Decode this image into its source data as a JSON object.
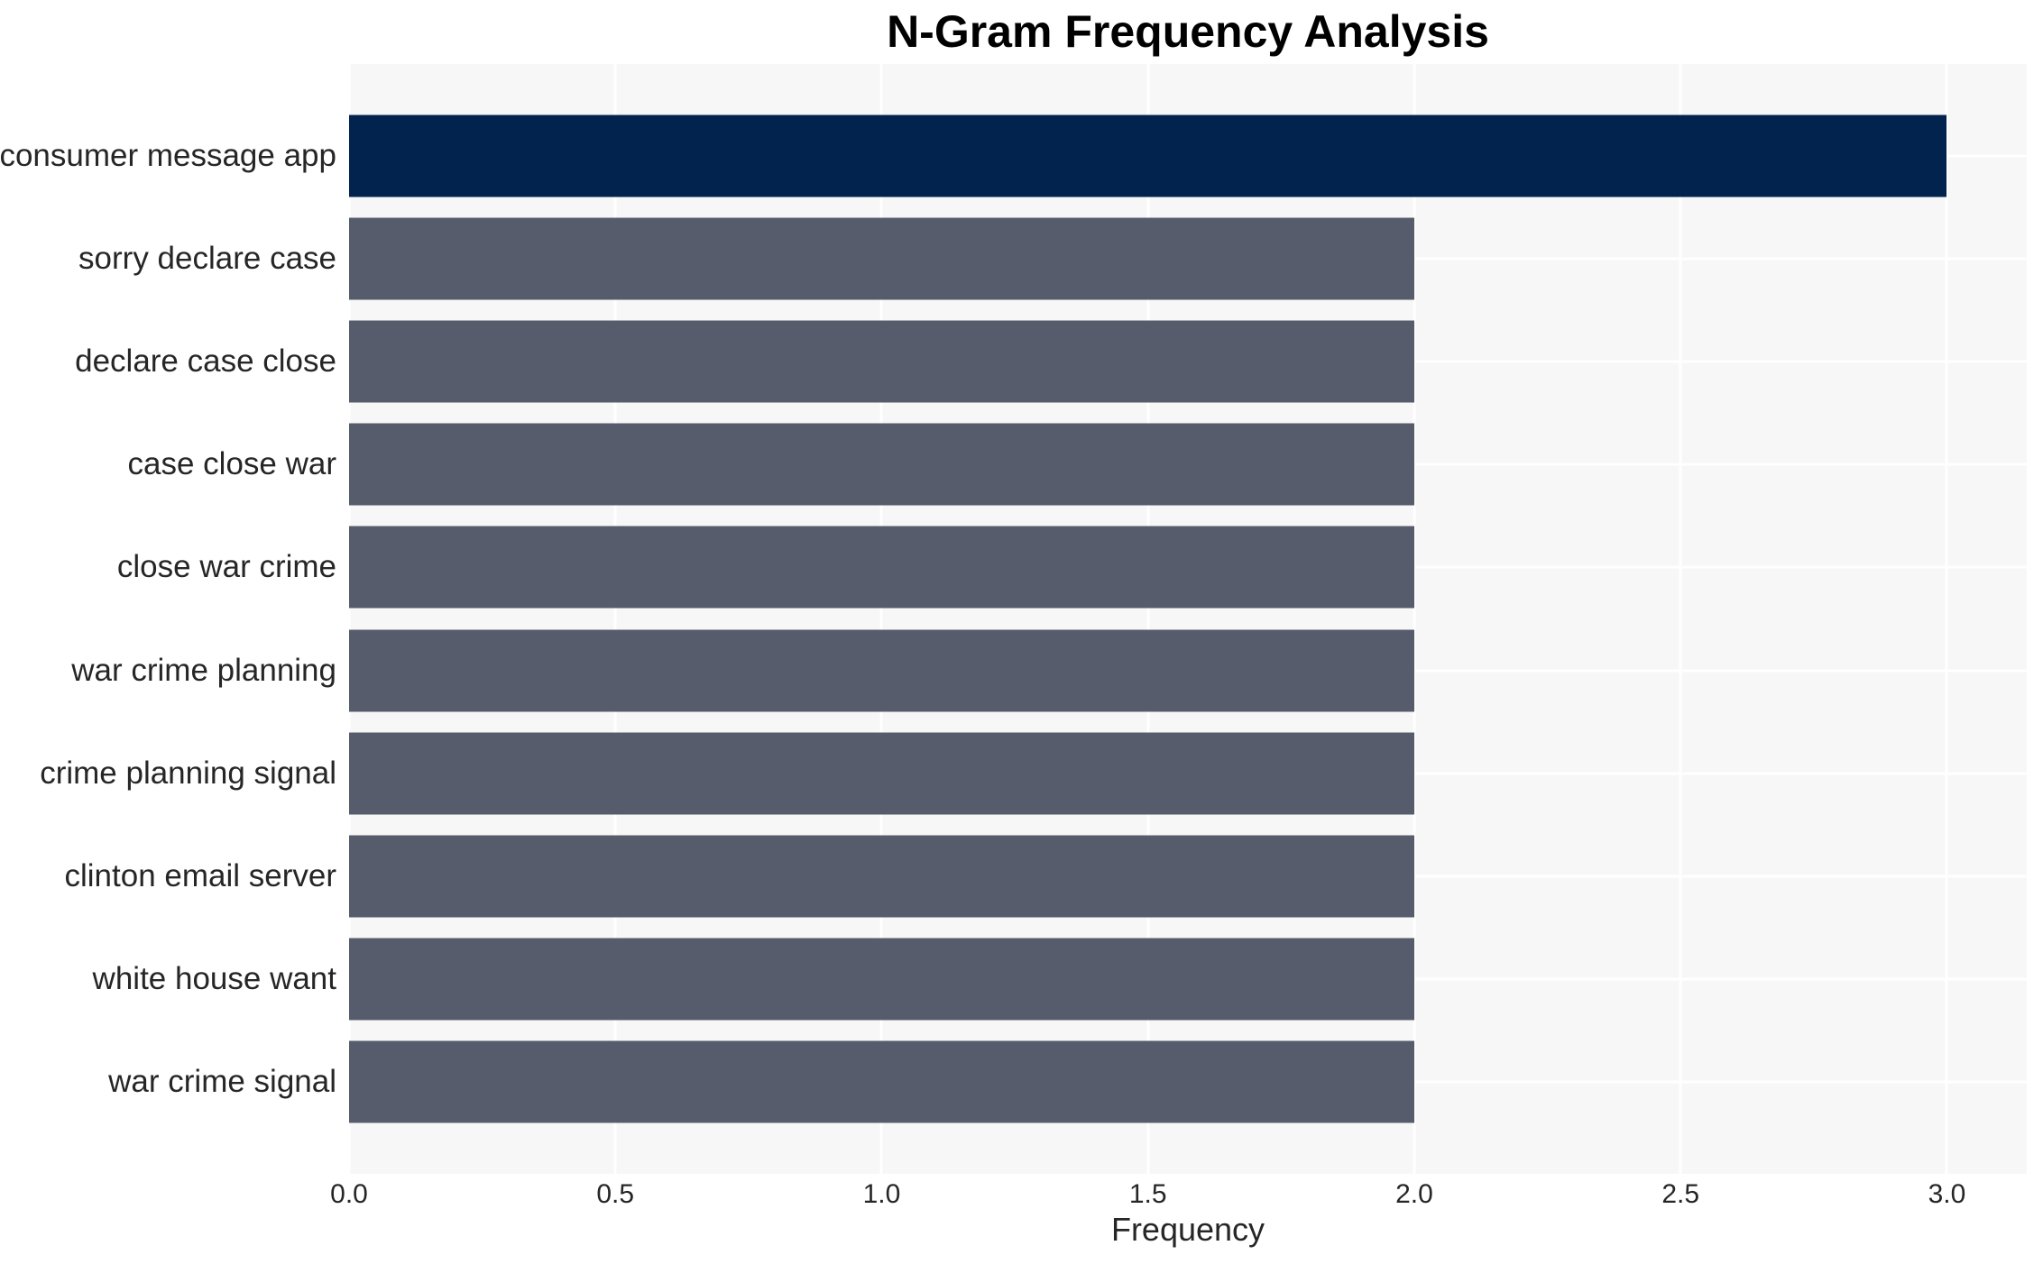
{
  "chart_data": {
    "type": "bar",
    "orientation": "horizontal",
    "title": "N-Gram Frequency Analysis",
    "xlabel": "Frequency",
    "ylabel": "",
    "categories": [
      "consumer message app",
      "sorry declare case",
      "declare case close",
      "case close war",
      "close war crime",
      "war crime planning",
      "crime planning signal",
      "clinton email server",
      "white house want",
      "war crime signal"
    ],
    "values": [
      3.0,
      2.0,
      2.0,
      2.0,
      2.0,
      2.0,
      2.0,
      2.0,
      2.0,
      2.0
    ],
    "bar_colors": [
      "#02234d",
      "#565c6b",
      "#565c6b",
      "#565c6b",
      "#565c6b",
      "#565c6b",
      "#565c6b",
      "#565c6b",
      "#565c6b",
      "#565c6b"
    ],
    "xlim": [
      0,
      3.15
    ],
    "xticks": [
      0.0,
      0.5,
      1.0,
      1.5,
      2.0,
      2.5,
      3.0
    ],
    "xtick_labels": [
      "0.0",
      "0.5",
      "1.0",
      "1.5",
      "2.0",
      "2.5",
      "3.0"
    ],
    "grid": true,
    "legend": false,
    "colors": {
      "panel_background": "#f7f7f7",
      "grid_line": "#ffffff",
      "tick_text": "#262626",
      "title_text": "#000000",
      "highlight_bar": "#02234d",
      "default_bar": "#565c6b"
    }
  }
}
